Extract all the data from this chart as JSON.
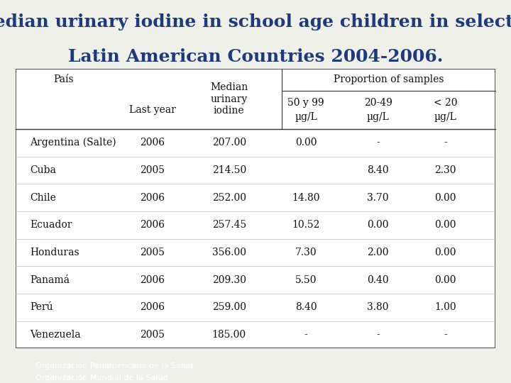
{
  "title_line1": "Median urinary iodine in school age children in selected",
  "title_line2": "Latin American Countries 2004-2006.",
  "title_color": "#1F3A7A",
  "title_fontsize": 18,
  "background_color": "#F0F0EB",
  "footer_bg_color": "#1C3B8A",
  "footer_text1": "Organización Panamericana de la Salud",
  "footer_text2": "Organización Mundial de la Salud",
  "footer_text_color": "#FFFFFF",
  "footer_fontsize": 8,
  "countries": [
    "Argentina (Salte)",
    "Cuba",
    "Chile",
    "Ecuador",
    "Honduras",
    "Panamá",
    "Perú",
    "Venezuela"
  ],
  "last_year": [
    "2006",
    "2005",
    "2006",
    "2006",
    "2005",
    "2006",
    "2006",
    "2005"
  ],
  "median_urinary_iodine": [
    "207.00",
    "214.50",
    "252.00",
    "257.45",
    "356.00",
    "209.30",
    "259.00",
    "185.00"
  ],
  "prop_50_99": [
    "0.00",
    "",
    "14.80",
    "10.52",
    "7.30",
    "5.50",
    "8.40",
    "-"
  ],
  "prop_20_49": [
    "-",
    "8.40",
    "3.70",
    "0.00",
    "2.00",
    "0.40",
    "3.80",
    "-"
  ],
  "prop_lt20": [
    "-",
    "2.30",
    "0.00",
    "0.00",
    "0.00",
    "0.00",
    "1.00",
    "-"
  ],
  "table_border_color": "#333333",
  "text_color": "#111111",
  "header_text_color": "#111111",
  "font_family": "serif"
}
